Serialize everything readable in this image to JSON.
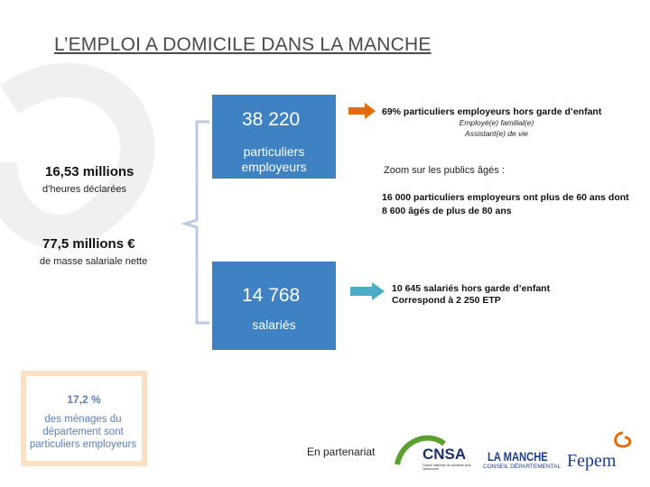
{
  "header": {
    "title": "L’EMPLOI A DOMICILE DANS LA MANCHE"
  },
  "left": {
    "hours": "16,53 millions",
    "hours_caption": "d’heures déclarées",
    "payroll": "77,5 millions €",
    "payroll_caption": "de masse salariale nette"
  },
  "employers_box": {
    "number": "38 220",
    "label": "particuliers employeurs"
  },
  "employers_note": {
    "headline": "69% particuliers employeurs hors garde d’enfant",
    "lines": [
      "Employé(e) familial(e)",
      "Assistant(e) de vie"
    ]
  },
  "zoom": {
    "title": "Zoom  sur les publics âgés :",
    "text": "16 000 particuliers employeurs ont  plus de 60 ans dont  8 600 âgés de plus de 80 ans"
  },
  "employees_box": {
    "number": "14 768",
    "label": "salariés"
  },
  "employees_note": {
    "lines": [
      "10 645 salariés hors garde d’enfant",
      "Correspond à 2 250 ETP"
    ]
  },
  "card": {
    "number": "17,2 %",
    "text": "des ménages du département sont particuliers employeurs"
  },
  "footer": {
    "partnership": "En partenariat",
    "logos": [
      {
        "name": "CNSA",
        "caption": "Caisse nationale de solidarité pour l'autonomie"
      },
      {
        "name": "LA MANCHE",
        "caption": "CONSEIL DÉPARTEMENTAL"
      },
      {
        "name": "Fepem"
      }
    ]
  }
}
